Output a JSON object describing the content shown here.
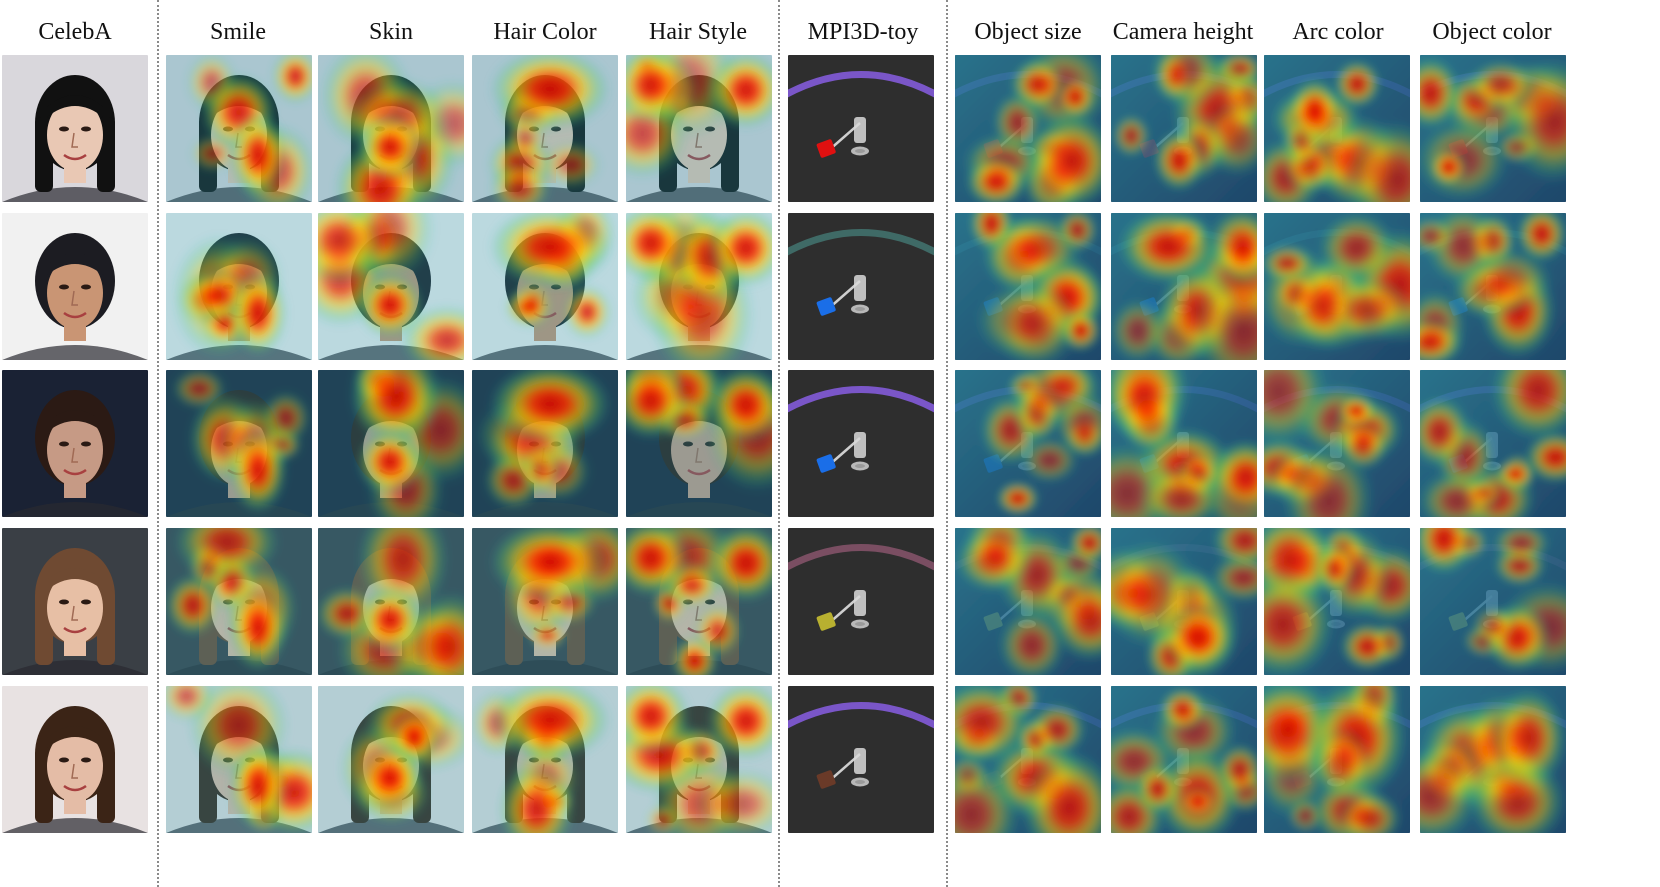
{
  "columns": [
    {
      "key": "celeba",
      "label": "CelebA",
      "kind": "face"
    },
    {
      "key": "smile",
      "label": "Smile",
      "kind": "face-heat"
    },
    {
      "key": "skin",
      "label": "Skin",
      "kind": "face-heat"
    },
    {
      "key": "hair_color",
      "label": "Hair Color",
      "kind": "face-heat"
    },
    {
      "key": "hair_style",
      "label": "Hair Style",
      "kind": "face-heat"
    },
    {
      "key": "mpi3d",
      "label": "MPI3D-toy",
      "kind": "robot"
    },
    {
      "key": "object_size",
      "label": "Object size",
      "kind": "robot-heat"
    },
    {
      "key": "camera_height",
      "label": "Camera height",
      "kind": "robot-heat"
    },
    {
      "key": "arc_color",
      "label": "Arc color",
      "kind": "robot-heat"
    },
    {
      "key": "object_color",
      "label": "Object color",
      "kind": "robot-heat"
    }
  ],
  "face_rows": [
    {
      "skin": "#e9c8b4",
      "hair": "#111111",
      "bg": "#d9d7dc"
    },
    {
      "skin": "#c99574",
      "hair": "#1c1c22",
      "bg": "#f1f1f1"
    },
    {
      "skin": "#c69a85",
      "hair": "#2b1a14",
      "bg": "#1a2234"
    },
    {
      "skin": "#e7bfa5",
      "hair": "#6f4a32",
      "bg": "#3a3f45"
    },
    {
      "skin": "#e4bca6",
      "hair": "#3b2416",
      "bg": "#e8e2e2"
    }
  ],
  "robot_rows": [
    {
      "arc_color": "#7a56c8",
      "object_color": "#e01010"
    },
    {
      "arc_color": "#3f6a66",
      "object_color": "#1a6ee8"
    },
    {
      "arc_color": "#7a56c8",
      "object_color": "#1a6ee8"
    },
    {
      "arc_color": "#7a4e62",
      "object_color": "#b8b030"
    },
    {
      "arc_color": "#7a56c8",
      "object_color": "#6a3a28"
    }
  ]
}
